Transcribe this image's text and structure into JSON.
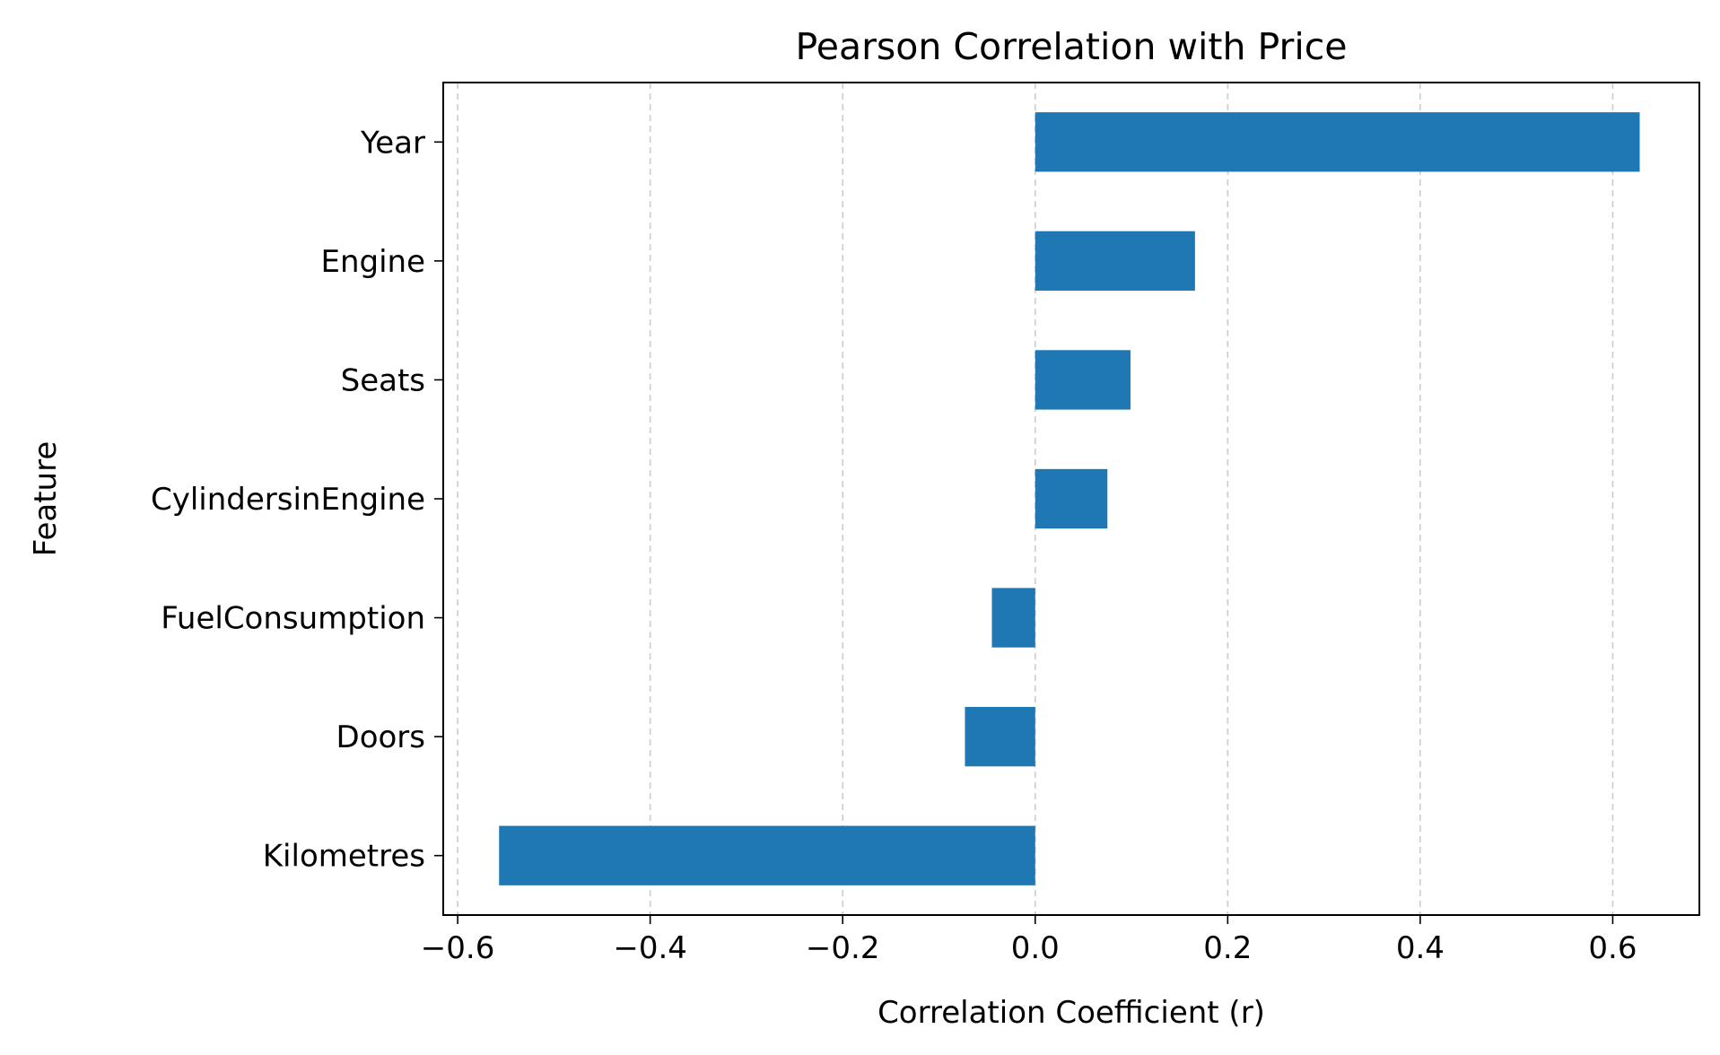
{
  "chart_data": {
    "type": "bar",
    "orientation": "horizontal",
    "title": "Pearson Correlation with Price",
    "xlabel": "Correlation Coefficient (r)",
    "ylabel": "Feature",
    "categories": [
      "Year",
      "Engine",
      "Seats",
      "CylindersinEngine",
      "FuelConsumption",
      "Doors",
      "Kilometres"
    ],
    "values": [
      0.628,
      0.166,
      0.099,
      0.075,
      -0.045,
      -0.073,
      -0.557
    ],
    "xlim": [
      -0.615,
      0.69
    ],
    "xticks": [
      -0.6,
      -0.4,
      -0.2,
      0.0,
      0.2,
      0.4,
      0.6
    ],
    "xtick_labels": [
      "−0.6",
      "−0.4",
      "−0.2",
      "0.0",
      "0.2",
      "0.4",
      "0.6"
    ],
    "grid": "x-dashed",
    "bar_color": "#1f77b4",
    "grid_color": "#cccccc"
  }
}
